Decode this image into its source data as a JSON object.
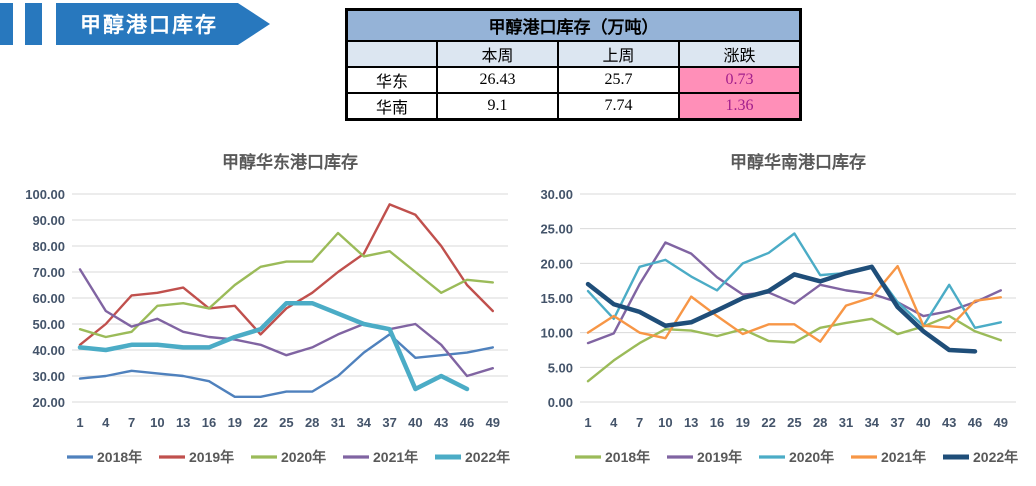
{
  "banner": {
    "title": "甲醇港口库存"
  },
  "table": {
    "title": "甲醇港口库存（万吨）",
    "header": [
      "",
      "本周",
      "上周",
      "涨跌"
    ],
    "rows": [
      {
        "label": "华东",
        "values": [
          "26.43",
          "25.7",
          "0.73"
        ]
      },
      {
        "label": "华南",
        "values": [
          "9.1",
          "7.74",
          "1.36"
        ]
      }
    ]
  },
  "chart_data": [
    {
      "type": "line",
      "title": "甲醇华东港口库存",
      "xlabel": "",
      "ylabel": "",
      "x": [
        1,
        4,
        7,
        10,
        13,
        16,
        19,
        22,
        25,
        28,
        31,
        34,
        37,
        40,
        43,
        46,
        49
      ],
      "ylim": [
        20,
        100
      ],
      "yticks": [
        20,
        30,
        40,
        50,
        60,
        70,
        80,
        90,
        100
      ],
      "grid": true,
      "legend_position": "bottom",
      "series": [
        {
          "name": "2018年",
          "color": "#4F81BD",
          "thick": false,
          "values": [
            29,
            30,
            32,
            31,
            30,
            28,
            22,
            22,
            24,
            24,
            30,
            39,
            46,
            37,
            38,
            39,
            41
          ]
        },
        {
          "name": "2019年",
          "color": "#C0504D",
          "thick": false,
          "values": [
            42,
            50,
            61,
            62,
            64,
            56,
            57,
            46,
            56,
            62,
            70,
            77,
            96,
            92,
            80,
            65,
            55
          ]
        },
        {
          "name": "2020年",
          "color": "#9BBB59",
          "thick": false,
          "values": [
            48,
            45,
            47,
            57,
            58,
            56,
            65,
            72,
            74,
            74,
            85,
            76,
            78,
            70,
            62,
            67,
            66
          ]
        },
        {
          "name": "2021年",
          "color": "#8064A2",
          "thick": false,
          "values": [
            71,
            55,
            49,
            52,
            47,
            45,
            44,
            42,
            38,
            41,
            46,
            50,
            48,
            50,
            42,
            30,
            33
          ]
        },
        {
          "name": "2022年",
          "color": "#4BACC6",
          "thick": true,
          "values": [
            41,
            40,
            42,
            42,
            41,
            41,
            45,
            48,
            58,
            58,
            54,
            50,
            48,
            25,
            30,
            25,
            null
          ]
        }
      ]
    },
    {
      "type": "line",
      "title": "甲醇华南港口库存",
      "xlabel": "",
      "ylabel": "",
      "x": [
        1,
        4,
        7,
        10,
        13,
        16,
        19,
        22,
        25,
        28,
        31,
        34,
        37,
        40,
        43,
        46,
        49
      ],
      "ylim": [
        0,
        30
      ],
      "yticks": [
        0,
        5,
        10,
        15,
        20,
        25,
        30
      ],
      "grid": true,
      "legend_position": "bottom",
      "series": [
        {
          "name": "2018年",
          "color": "#9BBB59",
          "thick": false,
          "values": [
            3,
            6,
            8.5,
            10.5,
            10.3,
            9.5,
            10.5,
            8.8,
            8.6,
            10.7,
            11.4,
            12,
            9.8,
            10.9,
            12.4,
            10.2,
            8.9
          ]
        },
        {
          "name": "2019年",
          "color": "#8064A2",
          "thick": false,
          "values": [
            8.5,
            9.9,
            17,
            23,
            21.4,
            18,
            15.5,
            15.8,
            14.2,
            16.9,
            16.1,
            15.6,
            14.4,
            12.4,
            13.1,
            14.4,
            16.1
          ]
        },
        {
          "name": "2020年",
          "color": "#4BACC6",
          "thick": false,
          "values": [
            16,
            12,
            19.5,
            20.5,
            18.1,
            16.1,
            20,
            21.5,
            24.3,
            18.3,
            18.6,
            19.5,
            14.4,
            11,
            16.9,
            10.7,
            11.5
          ]
        },
        {
          "name": "2021年",
          "color": "#F79646",
          "thick": false,
          "values": [
            10,
            12.4,
            10,
            9.2,
            15.2,
            12.4,
            9.8,
            11.2,
            11.2,
            8.7,
            13.9,
            15.1,
            19.6,
            11,
            10.7,
            14.6,
            15.1
          ]
        },
        {
          "name": "2022年",
          "color": "#1F4E79",
          "thick": true,
          "values": [
            17,
            14.1,
            13,
            11,
            11.5,
            13.2,
            15,
            16,
            18.4,
            17.4,
            18.6,
            19.5,
            13.7,
            10.2,
            7.5,
            7.3,
            null
          ]
        }
      ]
    }
  ],
  "colors": {
    "banner_blue": "#2878BE",
    "table_title_bg": "#95B3D7",
    "table_header_bg": "#DCE6F1",
    "change_cell_bg": "#FF8FB8",
    "change_text": "#A21E8C",
    "grid": "#D9D9D9",
    "tick_text": "#44546A",
    "title_text": "#595959"
  }
}
